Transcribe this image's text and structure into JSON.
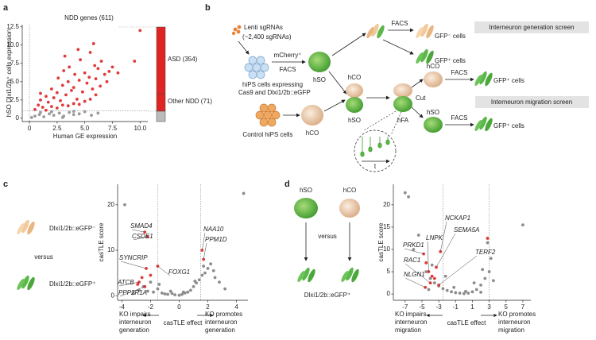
{
  "panel_labels": [
    "a",
    "b",
    "c",
    "d"
  ],
  "chart_data": [
    {
      "type": "scatter",
      "xlabel": "Human GE expression",
      "ylabel": "hSO Dlxi1/2b⁺ cells expression",
      "note": "NDD genes (611)",
      "bar_labels": [
        "ASD (354)",
        "Other NDD (71)"
      ],
      "xlim": [
        -0.65,
        10.7
      ],
      "ylim": [
        -0.45,
        12.8
      ],
      "xticks": [
        0,
        2.5,
        {
          "value": 5,
          "label": "5.0"
        },
        7.5,
        {
          "value": 10,
          "label": "10.0"
        }
      ],
      "yticks": [
        0,
        2.5,
        {
          "value": 5,
          "label": "5.0"
        },
        7.5,
        {
          "value": 10,
          "label": "10.0"
        },
        12.5
      ],
      "vlines": [
        0
      ],
      "hlines": [
        1
      ],
      "series": [
        {
          "color": "#9a9a9a",
          "x": [
            0.2,
            0.5,
            0.9,
            1.3,
            1.8,
            2.2,
            2.7,
            3.1,
            3.6,
            4.0,
            4.5,
            5.0,
            5.6,
            6.2,
            1.0,
            2.0,
            3.0,
            4.0
          ],
          "values": [
            0.1,
            0.3,
            0.5,
            0.2,
            0.6,
            0.4,
            0.7,
            0.3,
            0.8,
            0.5,
            0.6,
            0.9,
            0.4,
            0.7,
            0.8,
            0.9,
            0.1,
            0.95
          ]
        },
        {
          "color": "#e03a3a",
          "x": [
            0.5,
            0.8,
            1.0,
            1.2,
            1.5,
            1.7,
            2.0,
            2.2,
            2.5,
            2.6,
            2.8,
            3.0,
            3.1,
            3.3,
            3.5,
            3.6,
            3.8,
            4.0,
            4.1,
            4.3,
            4.5,
            4.6,
            4.8,
            5.0,
            5.2,
            5.4,
            5.5,
            5.7,
            5.9,
            6.0,
            6.2,
            6.4,
            6.5,
            6.8,
            7.0,
            7.2,
            7.5,
            2.0,
            3.0,
            4.0,
            5.0,
            6.0,
            1.5,
            2.5,
            3.5,
            4.5,
            5.5,
            8.0,
            9.5,
            10.0,
            3.2,
            4.4,
            1.0,
            5.8
          ],
          "values": [
            1.2,
            1.8,
            2.5,
            1.5,
            3.0,
            2.2,
            4.0,
            2.8,
            3.5,
            5.5,
            2.4,
            4.5,
            6.5,
            3.2,
            5.0,
            7.0,
            3.8,
            4.2,
            6.0,
            2.6,
            5.2,
            8.0,
            3.6,
            6.2,
            4.8,
            5.6,
            9.0,
            4.0,
            7.2,
            5.4,
            6.8,
            4.4,
            7.8,
            6.0,
            5.0,
            6.4,
            7.0,
            1.6,
            1.8,
            2.0,
            2.3,
            3.2,
            1.1,
            1.4,
            1.7,
            1.9,
            2.6,
            6.2,
            7.8,
            12.0,
            8.5,
            9.4,
            3.4,
            10.2
          ]
        }
      ]
    },
    {
      "type": "scatter",
      "xlabel": "casTLE effect",
      "ylabel": "casTLE score",
      "left_note": [
        "KO impairs",
        "interneuron",
        "generation"
      ],
      "right_note": [
        "KO promotes",
        "interneuron",
        "generation"
      ],
      "xlim": [
        -4.3,
        4.8
      ],
      "ylim": [
        -1,
        24.5
      ],
      "xticks": [
        -4,
        -2,
        0,
        2,
        4
      ],
      "yticks": [
        0,
        10,
        20
      ],
      "vlines": [
        -1.5,
        1.5
      ],
      "series": [
        {
          "color": "#8c8c8c",
          "x": [
            -3.2,
            -2.8,
            -2.5,
            -2.2,
            -2.0,
            -1.8,
            -1.5,
            -1.2,
            -1.0,
            -0.8,
            -0.5,
            -0.3,
            0,
            0.2,
            0.4,
            0.6,
            0.8,
            1.0,
            1.2,
            1.4,
            1.6,
            1.8,
            2.0,
            2.2,
            2.5,
            2.8,
            3.2,
            -1.4,
            -0.6,
            0.3,
            1.1,
            1.7,
            2.4,
            4.5,
            -3.8
          ],
          "values": [
            0.5,
            1.2,
            2.0,
            1.0,
            3.0,
            0.8,
            1.5,
            0.6,
            0.4,
            0.3,
            0.5,
            0.2,
            0.1,
            0.3,
            0.6,
            0.8,
            1.2,
            2.0,
            2.8,
            3.5,
            4.5,
            5.0,
            6.0,
            7.0,
            4.0,
            3.0,
            1.5,
            2.5,
            1.0,
            0.8,
            3.2,
            6.5,
            5.5,
            22.5,
            20.0
          ]
        },
        {
          "color": "#e03a3a",
          "x": [
            -2.4,
            -2.2,
            -2.3,
            -1.5,
            -2.8,
            -2.4,
            -2.6,
            1.6,
            1.7,
            -2.0,
            -2.9
          ],
          "values": [
            14.0,
            13.0,
            6.0,
            6.5,
            3.0,
            2.0,
            4.0,
            10.0,
            8.0,
            4.5,
            2.5
          ]
        }
      ],
      "annotations": [
        {
          "text": "SMAD4",
          "x": -2.4,
          "y": 14.0
        },
        {
          "text": "CSDE1",
          "x": -2.2,
          "y": 13.0
        },
        {
          "text": "SYNCRIP",
          "x": -2.3,
          "y": 6.0
        },
        {
          "text": "FOXG1",
          "x": -1.5,
          "y": 6.5
        },
        {
          "text": "ATCB",
          "x": -2.8,
          "y": 3.0
        },
        {
          "text": "PPP2R1A",
          "x": -2.4,
          "y": 2.0
        },
        {
          "text": "NAA10",
          "x": 1.6,
          "y": 10.0
        },
        {
          "text": "PPM1D",
          "x": 1.7,
          "y": 8.0
        }
      ]
    },
    {
      "type": "scatter",
      "xlabel": "casTLE effect",
      "ylabel": "casTLE score",
      "left_note": [
        "KO impairs",
        "interneuron",
        "migration"
      ],
      "right_note": [
        "KO promotes",
        "interneuron",
        "migration"
      ],
      "xlim": [
        -8.4,
        7.95
      ],
      "ylim": [
        -1.4,
        24.6
      ],
      "xticks": [
        -7,
        -5,
        -3,
        -1,
        1,
        3,
        5,
        7
      ],
      "yticks": [
        0,
        5,
        10,
        15,
        20
      ],
      "vlines": [
        -2.5,
        3
      ],
      "series": [
        {
          "color": "#8c8c8c",
          "x": [
            -7,
            -6.6,
            7,
            -5.4,
            -6,
            -4.5,
            -4,
            -3.5,
            -3,
            -2.5,
            -2,
            -1.5,
            -1,
            -0.5,
            0,
            0.5,
            1,
            1.5,
            2,
            2.5,
            3,
            3.5,
            -3.8,
            -2.2,
            -1.2,
            0.2,
            1.2,
            2.2,
            2.8,
            3.2,
            -4.2,
            2.0
          ],
          "values": [
            22.7,
            21.8,
            15.5,
            13.2,
            10,
            5,
            3.5,
            2.5,
            1.8,
            1.2,
            0.8,
            0.5,
            0.3,
            0.2,
            0.1,
            0.2,
            0.5,
            1.0,
            2.0,
            3.5,
            5.0,
            3.0,
            6.5,
            4.0,
            1.5,
            0.6,
            2.5,
            5.5,
            11.5,
            8,
            1.0,
            0.4
          ]
        },
        {
          "color": "#e03a3a",
          "x": [
            -4.8,
            -4.5,
            -4.2,
            -3.8,
            -3.5,
            -4.0,
            -2.8,
            -3.3,
            -4.6,
            2.8,
            -3.0
          ],
          "values": [
            9.0,
            7.0,
            5.0,
            4.0,
            3.5,
            2.5,
            9.5,
            6.0,
            1.5,
            12.5,
            2.0
          ]
        }
      ],
      "annotations": [
        {
          "text": "NCKAP1",
          "x": -2.8,
          "y": 9.5
        },
        {
          "text": "LNPK",
          "x": -4.2,
          "y": 5.0
        },
        {
          "text": "SEMA5A",
          "x": -3.3,
          "y": 6.0
        },
        {
          "text": "PRKD1",
          "x": -4.8,
          "y": 9.0
        },
        {
          "text": "TERF2",
          "x": -3.0,
          "y": 2.0
        },
        {
          "text": "RAC1",
          "x": -4.0,
          "y": 2.5
        },
        {
          "text": "NLGN1",
          "x": -4.6,
          "y": 1.5
        }
      ]
    }
  ],
  "diagram_b": {
    "sgrnas": "Lenti sgRNAs",
    "sgrna_count": "(~2,400 sgRNAs)",
    "mcherry": "mCherry⁺",
    "facs_1": "FACS",
    "hips": [
      "hiPS cells expressing",
      "Cas9 and Dlxi1/2b::eGFP"
    ],
    "hso_1": "hSO",
    "facs_2": "FACS",
    "gfp_neg": "GFP⁻ cells",
    "gfp_pos_1": "GFP⁺ cells",
    "generation_screen": "Interneuron generation screen",
    "hco_1": "hCO",
    "hso_2": "hSO",
    "hfa": "hFA",
    "cut": "Cut",
    "hco_2": "hCO",
    "facs_3": "FACS",
    "gfp_pos_2": "GFP⁺ cells",
    "migration_screen": "Interneuron migration screen",
    "hso_3": "hSO",
    "facs_4": "FACS",
    "gfp_pos_3": "GFP⁺ cells",
    "control": "Control hiPS cells",
    "hco_3": "hCO",
    "time": "t"
  },
  "diagram_c": {
    "neg": "Dlxi1/2b::eGFP⁻",
    "versus": "versus",
    "pos": "Dlxi1/2b::eGFP⁺"
  },
  "diagram_d": {
    "hso": "hSO",
    "hco": "hCO",
    "versus": "versus",
    "pos": "Dlxi1/2b::eGFP⁺"
  }
}
